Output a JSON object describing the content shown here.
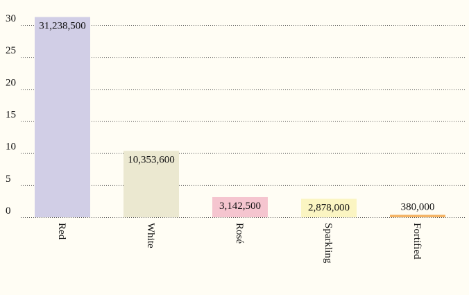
{
  "chart_data": {
    "type": "bar",
    "categories": [
      "Red",
      "White",
      "Rosé",
      "Sparkling",
      "Fortified"
    ],
    "values": [
      31.2385,
      10.3536,
      3.1425,
      2.878,
      0.38
    ],
    "value_labels": [
      "31,238,500",
      "10,353,600",
      "3,142,500",
      "2,878,000",
      "380,000"
    ],
    "colors": [
      "#d1cee6",
      "#ebe8d0",
      "#f5c5cf",
      "#fbf5c2",
      "#f4b466"
    ],
    "ylim": [
      0,
      30
    ],
    "yticks": [
      0,
      5,
      10,
      15,
      20,
      25,
      30
    ],
    "grid": true
  }
}
